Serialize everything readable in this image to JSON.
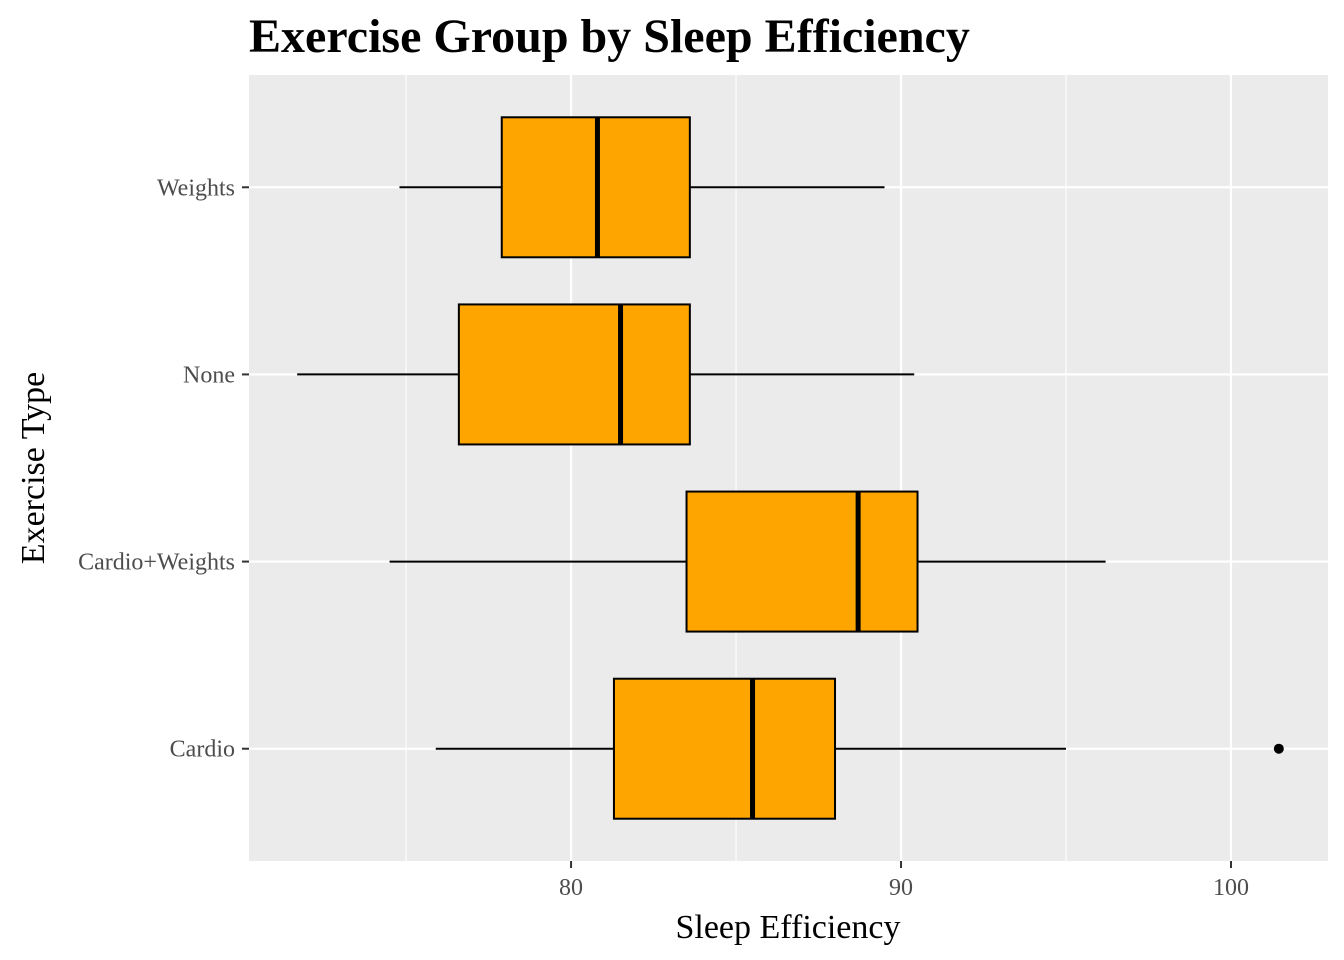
{
  "chart_data": {
    "type": "boxplot",
    "orientation": "horizontal",
    "title": "Exercise Group by Sleep Efficiency",
    "xlabel": "Sleep Efficiency",
    "ylabel": "Exercise Type",
    "xlim": [
      70.24,
      102.94
    ],
    "xticks": [
      80,
      90,
      100
    ],
    "xtick_labels": [
      "80",
      "90",
      "100"
    ],
    "categories": [
      "Cardio",
      "Cardio+Weights",
      "None",
      "Weights"
    ],
    "grid": true,
    "box_fill": "#FFA500",
    "panel_background": "#EBEBEB",
    "series": [
      {
        "category": "Cardio",
        "whisker_low": 75.9,
        "q1": 81.3,
        "median": 85.5,
        "q3": 88.0,
        "whisker_high": 95.0,
        "outliers": [
          101.45
        ]
      },
      {
        "category": "Cardio+Weights",
        "whisker_low": 74.5,
        "q1": 83.5,
        "median": 88.7,
        "q3": 90.5,
        "whisker_high": 96.2,
        "outliers": []
      },
      {
        "category": "None",
        "whisker_low": 71.7,
        "q1": 76.6,
        "median": 81.5,
        "q3": 83.6,
        "whisker_high": 90.4,
        "outliers": []
      },
      {
        "category": "Weights",
        "whisker_low": 74.8,
        "q1": 77.9,
        "median": 80.8,
        "q3": 83.6,
        "whisker_high": 89.5,
        "outliers": []
      }
    ]
  }
}
